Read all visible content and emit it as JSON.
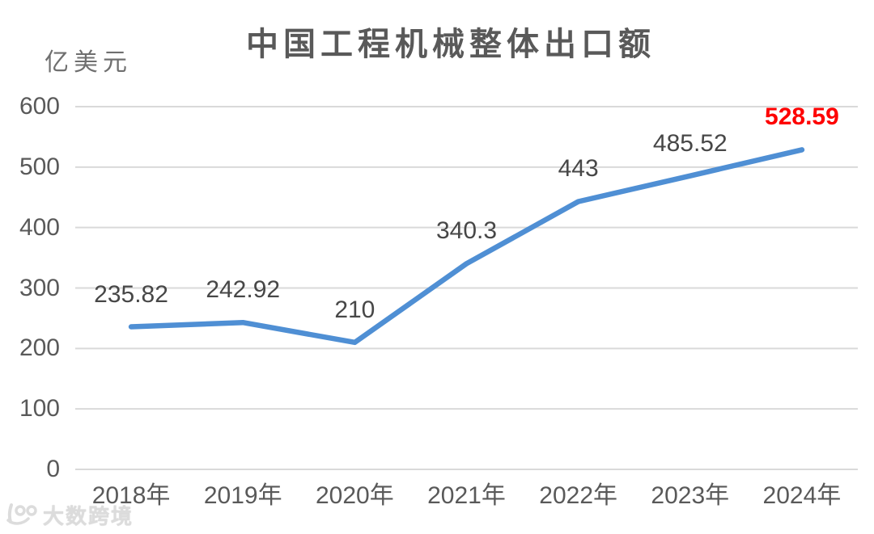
{
  "watermark": {
    "logo": "10100-swoosh-logo",
    "text": "大数跨境"
  },
  "chart_data": {
    "type": "line",
    "title": "中国工程机械整体出口额",
    "unit_label": "亿美元",
    "categories": [
      "2018年",
      "2019年",
      "2020年",
      "2021年",
      "2022年",
      "2023年",
      "2024年"
    ],
    "values": [
      235.82,
      242.92,
      210,
      340.3,
      443,
      485.52,
      528.59
    ],
    "data_labels": [
      "235.82",
      "242.92",
      "210",
      "340.3",
      "443",
      "485.52",
      "528.59"
    ],
    "xlabel": "",
    "ylabel": "亿美元",
    "ylim": [
      0,
      600
    ],
    "yticks": [
      0,
      100,
      200,
      300,
      400,
      500,
      600
    ],
    "grid": true,
    "legend": false,
    "legend_position": "none",
    "line_color": "#4f8fd4",
    "gridline_color": "#d9d9d9",
    "axis_text_color": "#595959",
    "label_color": "#474747",
    "highlight_last_color": "#fe0000",
    "title_color": "#595959"
  }
}
